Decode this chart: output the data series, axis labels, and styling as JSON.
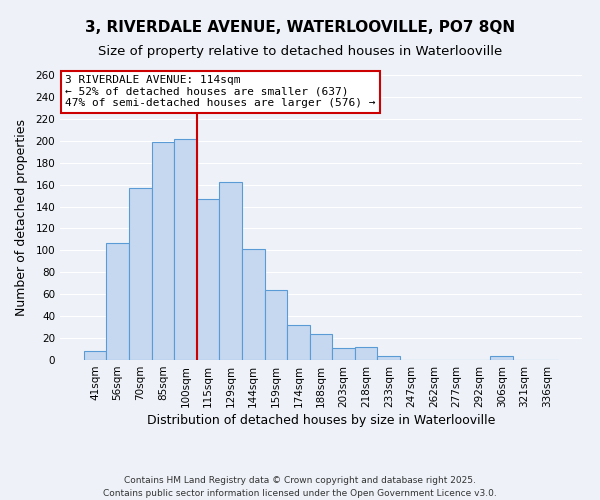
{
  "title": "3, RIVERDALE AVENUE, WATERLOOVILLE, PO7 8QN",
  "subtitle": "Size of property relative to detached houses in Waterlooville",
  "xlabel": "Distribution of detached houses by size in Waterlooville",
  "ylabel": "Number of detached properties",
  "categories": [
    "41sqm",
    "56sqm",
    "70sqm",
    "85sqm",
    "100sqm",
    "115sqm",
    "129sqm",
    "144sqm",
    "159sqm",
    "174sqm",
    "188sqm",
    "203sqm",
    "218sqm",
    "233sqm",
    "247sqm",
    "262sqm",
    "277sqm",
    "292sqm",
    "306sqm",
    "321sqm",
    "336sqm"
  ],
  "values": [
    8,
    107,
    157,
    199,
    202,
    147,
    162,
    101,
    64,
    32,
    24,
    11,
    12,
    4,
    0,
    0,
    0,
    0,
    4,
    0,
    0
  ],
  "bar_color": "#c5d8f0",
  "bar_edge_color": "#5b9bd5",
  "ylim": [
    0,
    260
  ],
  "yticks": [
    0,
    20,
    40,
    60,
    80,
    100,
    120,
    140,
    160,
    180,
    200,
    220,
    240,
    260
  ],
  "vline_color": "#cc0000",
  "annotation_title": "3 RIVERDALE AVENUE: 114sqm",
  "annotation_line1": "← 52% of detached houses are smaller (637)",
  "annotation_line2": "47% of semi-detached houses are larger (576) →",
  "annotation_box_color": "#ffffff",
  "annotation_box_edge": "#cc0000",
  "background_color": "#eef2f8",
  "grid_color": "#ffffff",
  "footer1": "Contains HM Land Registry data © Crown copyright and database right 2025.",
  "footer2": "Contains public sector information licensed under the Open Government Licence v3.0.",
  "title_fontsize": 11,
  "subtitle_fontsize": 9.5,
  "axis_label_fontsize": 9,
  "tick_fontsize": 7.5,
  "annotation_fontsize": 8
}
